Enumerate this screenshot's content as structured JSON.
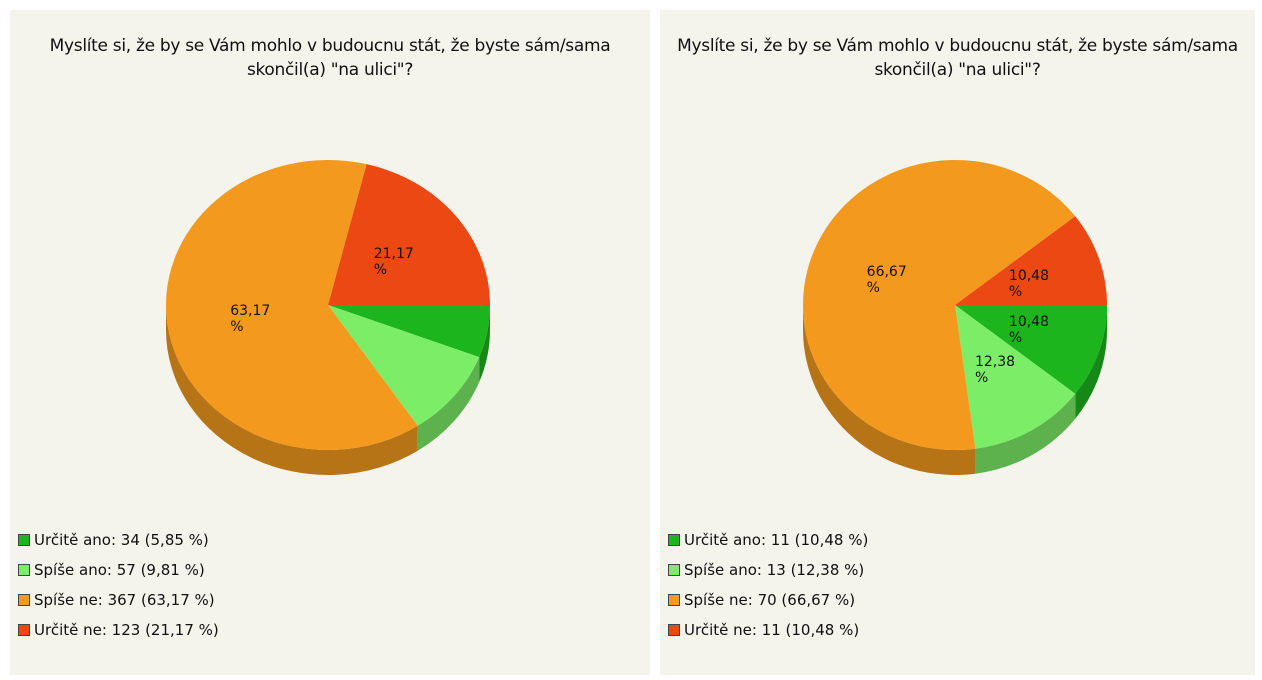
{
  "chart_data": [
    {
      "type": "pie",
      "title": "Myslíte si, že by se Vám mohlo v budoucnu stát, že byste sám/sama skončil(a) \"na ulici\"?",
      "categories": [
        "Určitě ano: 34 (5,85 %)",
        "Spíše ano: 57 (9,81 %)",
        "Spíše ne: 367 (63,17 %)",
        "Určitě ne: 123 (21,17 %)"
      ],
      "values": [
        5.85,
        9.81,
        63.17,
        21.17
      ],
      "value_labels": [
        null,
        null,
        "63,17 %",
        "21,17 %"
      ],
      "colors": [
        "#1db51d",
        "#7ced66",
        "#f39a1e",
        "#ec4814"
      ]
    },
    {
      "type": "pie",
      "title": "Myslíte si, že by se Vám mohlo v budoucnu stát, že byste sám/sama skončil(a) \"na ulici\"?",
      "categories": [
        "Určitě ano: 11 (10,48 %)",
        "Spíše ano: 13 (12,38 %)",
        "Spíše ne: 70 (66,67 %)",
        "Určitě ne: 11 (10,48 %)"
      ],
      "values": [
        10.48,
        12.38,
        66.67,
        10.48
      ],
      "value_labels": [
        "10,48 %",
        "12,38 %",
        "66,67 %",
        "10,48 %"
      ],
      "colors": [
        "#1db51d",
        "#7ced66",
        "#f39a1e",
        "#ec4814"
      ]
    }
  ]
}
